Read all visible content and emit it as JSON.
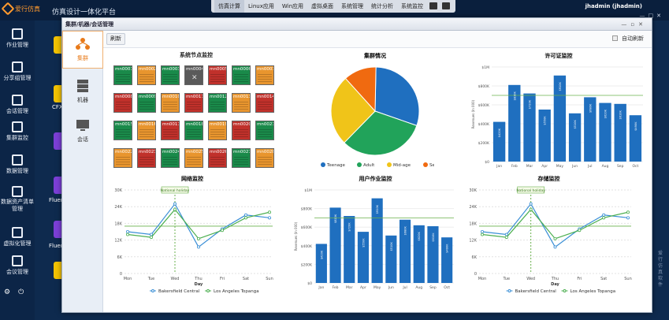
{
  "app": {
    "logo_text": "爱行仿真",
    "title": "仿真设计一体化平台",
    "user": "jhadmin (jhadmin)"
  },
  "topmenu": [
    "仿真计算",
    "Linux应用",
    "Win应用",
    "虚拟桌面",
    "系统管理",
    "统计分析",
    "系统监控"
  ],
  "leftbar": [
    "作业管理",
    "分享组管理",
    "会话管理",
    "集群监控",
    "数据管理",
    "数据资产清单管理",
    "虚拟化管理",
    "会议管理"
  ],
  "desktop": {
    "labels": [
      "CFX",
      "Fluen",
      "Fluen"
    ]
  },
  "watermark": "爱行仿真软件",
  "window": {
    "title": "集群/机器/会话管理",
    "refresh": "刷新",
    "auto_refresh": "自动刷新"
  },
  "sidepanel": [
    "集群",
    "机器",
    "会话"
  ],
  "colors": {
    "green": "#1a8a4a",
    "orange": "#e8952e",
    "red": "#c0312b",
    "bar": "#1f6fbf",
    "line1": "#3a8fd6",
    "line2": "#4caf50"
  },
  "node_panel": {
    "title": "系统节点监控",
    "nodes": [
      {
        "id": "mn0001",
        "s": "g"
      },
      {
        "id": "mn0002",
        "s": "o"
      },
      {
        "id": "mn0003",
        "s": "g"
      },
      {
        "id": "mn0004",
        "s": "d"
      },
      {
        "id": "mn0005",
        "s": "r"
      },
      {
        "id": "mn0006",
        "s": "g"
      },
      {
        "id": "mn0007",
        "s": "o"
      },
      {
        "id": "mn0008",
        "s": "r"
      },
      {
        "id": "mn0009",
        "s": "g"
      },
      {
        "id": "mn0010",
        "s": "o"
      },
      {
        "id": "mn0011",
        "s": "r"
      },
      {
        "id": "mn0012",
        "s": "g"
      },
      {
        "id": "mn0013",
        "s": "o"
      },
      {
        "id": "mn0014",
        "s": "r"
      },
      {
        "id": "mn0015",
        "s": "g"
      },
      {
        "id": "mn0016",
        "s": "o"
      },
      {
        "id": "mn0017",
        "s": "r"
      },
      {
        "id": "mn0018",
        "s": "g"
      },
      {
        "id": "mn0019",
        "s": "o"
      },
      {
        "id": "mn0020",
        "s": "r"
      },
      {
        "id": "mn0021",
        "s": "g"
      },
      {
        "id": "mn0022",
        "s": "o"
      },
      {
        "id": "mn0023",
        "s": "r"
      },
      {
        "id": "mn0024",
        "s": "g"
      },
      {
        "id": "mn0025",
        "s": "o"
      },
      {
        "id": "mn0026",
        "s": "r"
      },
      {
        "id": "mn0027",
        "s": "g"
      },
      {
        "id": "mn0028",
        "s": "o"
      }
    ]
  },
  "chart_data": [
    {
      "type": "pie",
      "title": "集群情况",
      "categories": [
        "Teenage",
        "Adult",
        "Mid-age",
        "Senior"
      ],
      "values": [
        30,
        32,
        26,
        12
      ],
      "colors": [
        "#1f6fbf",
        "#21a35a",
        "#f0c419",
        "#f06a10"
      ]
    },
    {
      "type": "bar",
      "title": "许可证监控",
      "ylabel": "Revenues (In 000)",
      "categories": [
        "Jan",
        "Feb",
        "Mar",
        "Apr",
        "May",
        "Jun",
        "Jul",
        "Aug",
        "Sep",
        "Oct"
      ],
      "values": [
        420000,
        810000,
        720000,
        550000,
        910000,
        510000,
        680000,
        620000,
        610000,
        490000
      ],
      "value_labels": [
        "$420K",
        "$810K",
        "$720K",
        "$550K",
        "$910K",
        "$510K",
        "$680K",
        "$620K",
        "$610K",
        "$490K"
      ],
      "yticks": [
        "$0",
        "$200K",
        "$400K",
        "$600K",
        "$800K",
        "$1M"
      ],
      "ylim": [
        0,
        1000000
      ],
      "target": 700000
    },
    {
      "type": "line",
      "title": "网络监控",
      "xlabel": "Day",
      "categories": [
        "Mon",
        "Tue",
        "Wed",
        "Thu",
        "Fri",
        "Sat",
        "Sun"
      ],
      "yticks": [
        "0",
        "6K",
        "12K",
        "18K",
        "24K",
        "30K"
      ],
      "ylim": [
        0,
        30000
      ],
      "annotation": "National holiday",
      "annotation_x": "Wed",
      "target": 17000,
      "series": [
        {
          "name": "Bakersfield Central",
          "values": [
            15000,
            14000,
            25000,
            9500,
            16000,
            21000,
            20000
          ]
        },
        {
          "name": "Los Angeles Topanga",
          "values": [
            14000,
            13000,
            23000,
            12500,
            15500,
            20000,
            22000
          ]
        }
      ]
    },
    {
      "type": "bar",
      "title": "用户作业监控",
      "ylabel": "Revenues (In 000)",
      "categories": [
        "Jan",
        "Feb",
        "Mar",
        "Apr",
        "May",
        "Jun",
        "Jul",
        "Aug",
        "Sep",
        "Oct"
      ],
      "values": [
        420000,
        810000,
        720000,
        550000,
        910000,
        510000,
        680000,
        620000,
        610000,
        490000
      ],
      "value_labels": [
        "$420K",
        "$810K",
        "$720K",
        "$550K",
        "$910K",
        "$510K",
        "$680K",
        "$620K",
        "$610K",
        "$490K"
      ],
      "yticks": [
        "$0",
        "$200K",
        "$400K",
        "$600K",
        "$800K",
        "$1M"
      ],
      "ylim": [
        0,
        1000000
      ],
      "target": 700000
    },
    {
      "type": "line",
      "title": "存储监控",
      "xlabel": "Day",
      "categories": [
        "Mon",
        "Tue",
        "Wed",
        "Thu",
        "Fri",
        "Sat",
        "Sun"
      ],
      "yticks": [
        "0",
        "6K",
        "12K",
        "18K",
        "24K",
        "30K"
      ],
      "ylim": [
        0,
        30000
      ],
      "annotation": "National holiday",
      "annotation_x": "Wed",
      "target": 17000,
      "series": [
        {
          "name": "Bakersfield Central",
          "values": [
            15000,
            14000,
            25000,
            9500,
            16000,
            21000,
            20000
          ]
        },
        {
          "name": "Los Angeles Topanga",
          "values": [
            14000,
            13000,
            23000,
            12500,
            15500,
            20000,
            22000
          ]
        }
      ]
    }
  ]
}
